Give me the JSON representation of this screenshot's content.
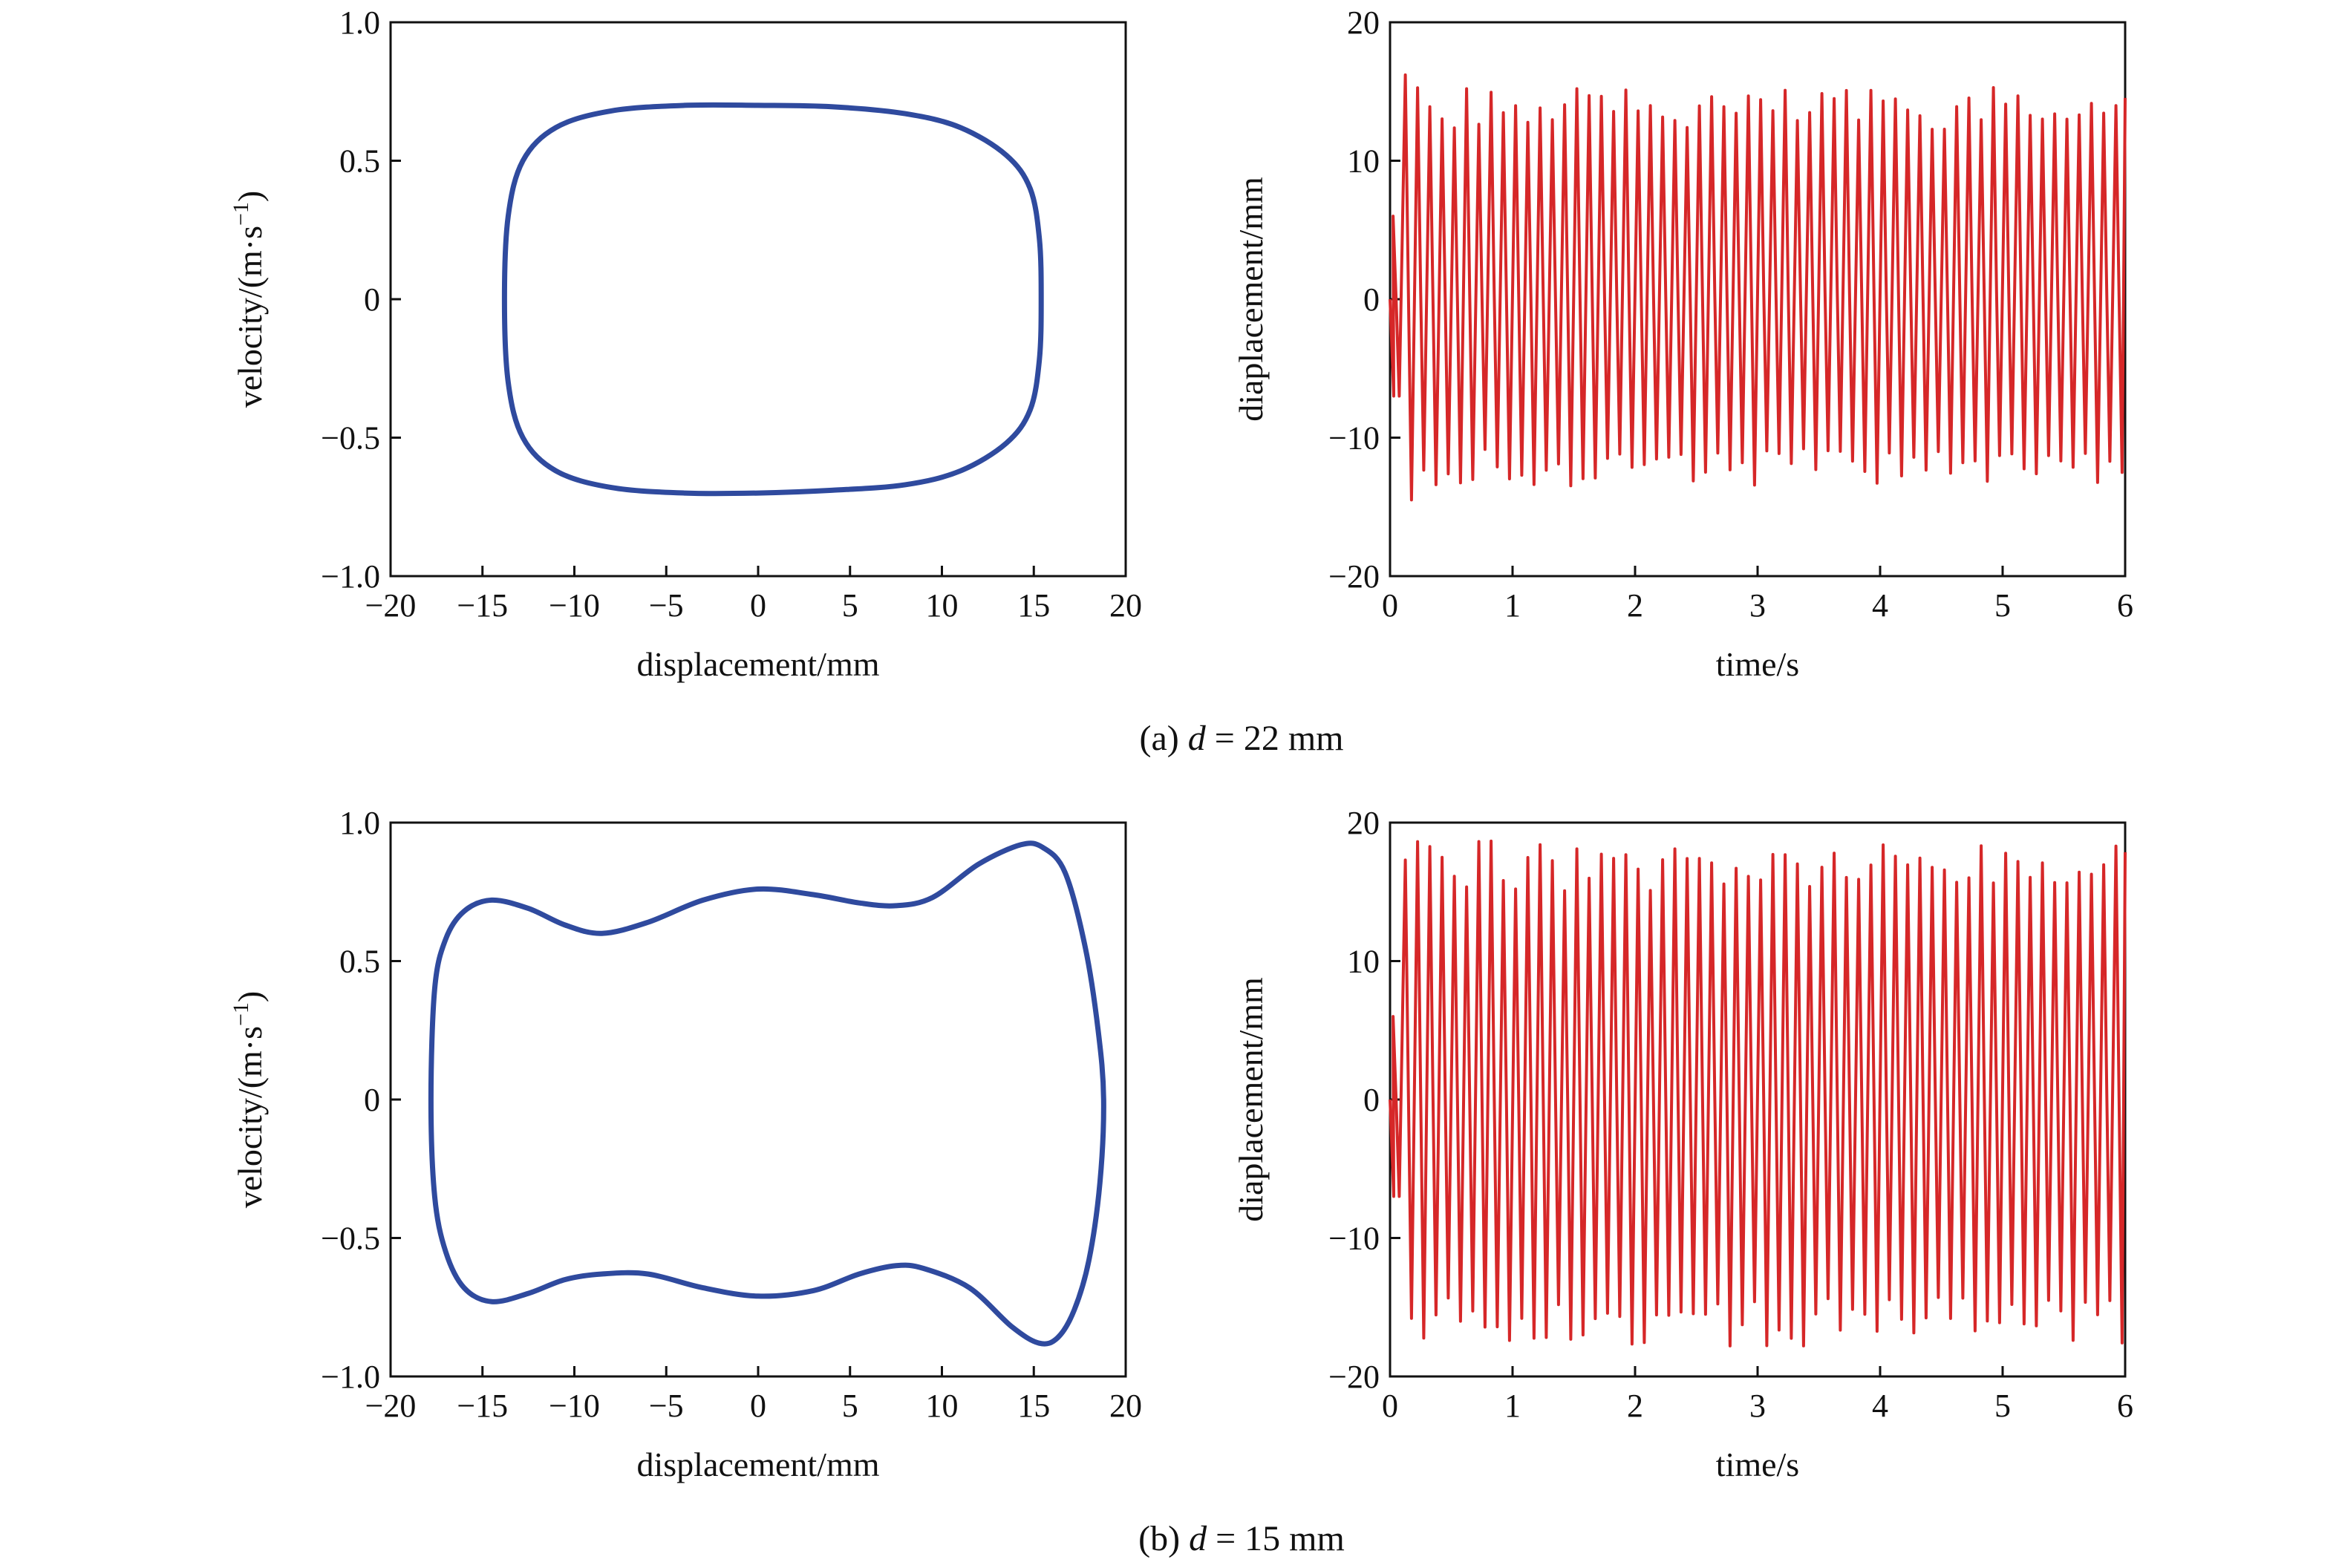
{
  "chart_data": [
    {
      "id": "a-phase",
      "type": "line",
      "xlabel": "displacement/mm",
      "ylabel_main": "velocity/(m·s",
      "ylabel_sup": "−1",
      "ylabel_close": ")",
      "xlim": [
        -20,
        20
      ],
      "ylim": [
        -1.0,
        1.0
      ],
      "xticks": [
        -20,
        -15,
        -10,
        -5,
        0,
        5,
        10,
        15,
        20
      ],
      "xtick_labels": [
        "−20",
        "−15",
        "−10",
        "−5",
        "0",
        "5",
        "10",
        "15",
        "20"
      ],
      "yticks": [
        -1.0,
        -0.5,
        0,
        0.5,
        1.0
      ],
      "ytick_labels": [
        "−1.0",
        "−0.5",
        "0",
        "0.5",
        "1.0"
      ],
      "color": "#2f4a9e",
      "series": [
        {
          "x": [
            0,
            4,
            8,
            11,
            13.5,
            14.8,
            15.3,
            15.4,
            15.3,
            14.8,
            13.5,
            11,
            8,
            4,
            0,
            -4,
            -8,
            -11,
            -12.8,
            -13.6,
            -13.8,
            -13.6,
            -12.8,
            -11,
            -8,
            -4,
            0
          ],
          "y": [
            0.7,
            0.695,
            0.67,
            0.62,
            0.52,
            0.4,
            0.22,
            0.0,
            -0.22,
            -0.4,
            -0.52,
            -0.62,
            -0.67,
            -0.69,
            -0.7,
            -0.7,
            -0.68,
            -0.62,
            -0.5,
            -0.3,
            0.0,
            0.3,
            0.5,
            0.62,
            0.68,
            0.7,
            0.7
          ]
        }
      ]
    },
    {
      "id": "a-time",
      "type": "line",
      "xlabel": "time/s",
      "ylabel": "diaplacement/mm",
      "xlim": [
        0,
        6
      ],
      "ylim": [
        -20,
        20
      ],
      "xticks": [
        0,
        1,
        2,
        3,
        4,
        5,
        6
      ],
      "xtick_labels": [
        "0",
        "1",
        "2",
        "3",
        "4",
        "5",
        "6"
      ],
      "yticks": [
        -20,
        -10,
        0,
        10,
        20
      ],
      "ytick_labels": [
        "−20",
        "−10",
        "0",
        "10",
        "20"
      ],
      "color": "#d62728",
      "signal": {
        "start": 0,
        "max": 15.3,
        "min": -13.5,
        "period": 0.1,
        "transient_peaks": [
          16.2,
          -14.5
        ]
      }
    },
    {
      "id": "b-phase",
      "type": "line",
      "xlabel": "displacement/mm",
      "ylabel_main": "velocity/(m·s",
      "ylabel_sup": "−1",
      "ylabel_close": ")",
      "xlim": [
        -20,
        20
      ],
      "ylim": [
        -1.0,
        1.0
      ],
      "xticks": [
        -20,
        -15,
        -10,
        -5,
        0,
        5,
        10,
        15,
        20
      ],
      "xtick_labels": [
        "−20",
        "−15",
        "−10",
        "−5",
        "0",
        "5",
        "10",
        "15",
        "20"
      ],
      "yticks": [
        -1.0,
        -0.5,
        0,
        0.5,
        1.0
      ],
      "ytick_labels": [
        "−1.0",
        "−0.5",
        "0",
        "0.5",
        "1.0"
      ],
      "color": "#2f4a9e",
      "series": [
        {
          "x": [
            -17.8,
            -17.6,
            -17.0,
            -16.0,
            -14.5,
            -12.5,
            -10.5,
            -8.5,
            -6,
            -3,
            0,
            3,
            5.5,
            7.5,
            9.5,
            12,
            14.3,
            15.5,
            16.7,
            17.8,
            18.5,
            18.8,
            18.6,
            18.0,
            17.2,
            16.3,
            15.3,
            13.8,
            11.5,
            9.0,
            7.5,
            5.5,
            3,
            0,
            -3,
            -6,
            -8.5,
            -10.5,
            -12.5,
            -14.5,
            -16.0,
            -17.0,
            -17.6,
            -17.8
          ],
          "y": [
            0.0,
            0.4,
            0.58,
            0.68,
            0.72,
            0.69,
            0.63,
            0.6,
            0.64,
            0.72,
            0.76,
            0.74,
            0.71,
            0.7,
            0.73,
            0.85,
            0.92,
            0.91,
            0.82,
            0.55,
            0.25,
            0.0,
            -0.3,
            -0.58,
            -0.76,
            -0.86,
            -0.88,
            -0.82,
            -0.68,
            -0.61,
            -0.6,
            -0.63,
            -0.69,
            -0.71,
            -0.68,
            -0.63,
            -0.63,
            -0.65,
            -0.7,
            -0.73,
            -0.68,
            -0.55,
            -0.35,
            0.0
          ]
        }
      ]
    },
    {
      "id": "b-time",
      "type": "line",
      "xlabel": "time/s",
      "ylabel": "diaplacement/mm",
      "xlim": [
        0,
        6
      ],
      "ylim": [
        -20,
        20
      ],
      "xticks": [
        0,
        1,
        2,
        3,
        4,
        5,
        6
      ],
      "xtick_labels": [
        "0",
        "1",
        "2",
        "3",
        "4",
        "5",
        "6"
      ],
      "yticks": [
        -20,
        -10,
        0,
        10,
        20
      ],
      "ytick_labels": [
        "−20",
        "−10",
        "0",
        "10",
        "20"
      ],
      "color": "#d62728",
      "signal": {
        "start": 0,
        "max": 18.8,
        "min": -17.8,
        "period": 0.1,
        "transient_peaks": [
          17.3,
          -15.8
        ]
      }
    }
  ],
  "captions": {
    "a_prefix": "(a) ",
    "a_var": "d",
    "a_suffix": " = 22 mm",
    "b_prefix": "(b) ",
    "b_var": "d",
    "b_suffix": " = 15 mm"
  }
}
